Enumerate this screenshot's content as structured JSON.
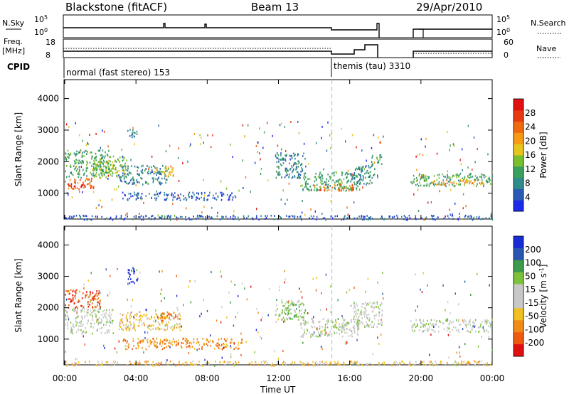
{
  "chart_data": {
    "type": "heatmap",
    "title": "Blackstone (fitACF)",
    "beam": "Beam 13",
    "date": "29/Apr/2010",
    "x_axis": {
      "label": "Time UT",
      "ticks": [
        "00:00",
        "04:00",
        "08:00",
        "12:00",
        "16:00",
        "20:00",
        "00:00"
      ],
      "range_hours": [
        0,
        24
      ]
    },
    "top_panels": {
      "nsky": {
        "left_label": "N.Sky",
        "left_ticks": [
          "10^5",
          "10^0"
        ],
        "right_label": "N.Search",
        "right_ticks": [
          "10^5",
          "10^0"
        ]
      },
      "freq": {
        "left_label_1": "Freq.",
        "left_label_2": "[MHz]",
        "left_ticks": [
          "18",
          "8"
        ],
        "right_label": "Nave",
        "right_ticks": [
          "60",
          "0"
        ]
      },
      "cpid": {
        "label": "CPID",
        "modes": [
          {
            "name": "normal (fast stereo) 153",
            "start_h": 0,
            "end_h": 15
          },
          {
            "name": "themis (tau) 3310",
            "start_h": 15,
            "end_h": 24
          }
        ]
      }
    },
    "panels": [
      {
        "name": "Power",
        "ylabel": "Slant Range [km]",
        "y_ticks": [
          1000,
          2000,
          3000,
          4000
        ],
        "ylim": [
          180,
          4600
        ],
        "colorbar": {
          "label": "Power [dB]",
          "ticks": [
            "4",
            "8",
            "12",
            "16",
            "20",
            "24",
            "28"
          ],
          "colors": [
            "#1c2bea",
            "#2b5ab4",
            "#2f8a8a",
            "#3a9f5a",
            "#7abf2e",
            "#e8c51d",
            "#f59a14",
            "#f06a10",
            "#e83a10",
            "#e01010"
          ]
        },
        "regions": [
          {
            "t": [
              0.0,
              2.5
            ],
            "r": [
              1500,
              2400
            ],
            "level": 3
          },
          {
            "t": [
              0.0,
              1.6
            ],
            "r": [
              1150,
              1500
            ],
            "level": 7
          },
          {
            "t": [
              0.1,
              1.2
            ],
            "r": [
              1200,
              1320
            ],
            "level": 9
          },
          {
            "t": [
              1.5,
              3.5
            ],
            "r": [
              1500,
              2200
            ],
            "level": 4
          },
          {
            "t": [
              3.0,
              5.8
            ],
            "r": [
              1300,
              1900
            ],
            "level": 2
          },
          {
            "t": [
              3.2,
              9.6
            ],
            "r": [
              800,
              1050
            ],
            "level": 1
          },
          {
            "t": [
              5.0,
              6.2
            ],
            "r": [
              1550,
              1850
            ],
            "level": 5
          },
          {
            "t": [
              11.8,
              13.5
            ],
            "r": [
              1500,
              2300
            ],
            "level": 2
          },
          {
            "t": [
              13.2,
              16.5
            ],
            "r": [
              1100,
              1700
            ],
            "level": 3
          },
          {
            "t": [
              14.0,
              16.2
            ],
            "r": [
              1100,
              1320
            ],
            "level": 7
          },
          {
            "t": [
              16.0,
              17.4
            ],
            "r": [
              1300,
              1900
            ],
            "level": 2
          },
          {
            "t": [
              17.2,
              17.8
            ],
            "r": [
              1900,
              2250
            ],
            "level": 3
          },
          {
            "t": [
              19.4,
              24.0
            ],
            "r": [
              1250,
              1650
            ],
            "level": 3
          },
          {
            "t": [
              20.5,
              23.5
            ],
            "r": [
              1280,
              1450
            ],
            "level": 6
          },
          {
            "t": [
              3.5,
              4.1
            ],
            "r": [
              2800,
              3100
            ],
            "level": 2
          },
          {
            "t": [
              0.0,
              24.0
            ],
            "r": [
              180,
              320
            ],
            "level": 1
          }
        ]
      },
      {
        "name": "Velocity",
        "ylabel": "Slant Range [km]",
        "y_ticks": [
          1000,
          2000,
          3000,
          4000
        ],
        "ylim": [
          180,
          4600
        ],
        "colorbar": {
          "label": "Velocity [m s^-1]",
          "ticks": [
            "200",
            "100",
            "50",
            "15",
            "-15",
            "-50",
            "-100",
            "-200"
          ],
          "colors": [
            "#1a2cd6",
            "#2a55b0",
            "#3b9b4a",
            "#7cc23a",
            "#c8c8c8",
            "#c8c8c8",
            "#f0c020",
            "#f08a18",
            "#f05a10",
            "#e01010"
          ]
        },
        "regions": [
          {
            "t": [
              0.0,
              2.7
            ],
            "r": [
              1200,
              2000
            ],
            "level": 4
          },
          {
            "t": [
              0.0,
              2.0
            ],
            "r": [
              2000,
              2600
            ],
            "level": 8
          },
          {
            "t": [
              3.0,
              6.5
            ],
            "r": [
              1300,
              1900
            ],
            "level": 6
          },
          {
            "t": [
              5.0,
              6.3
            ],
            "r": [
              1600,
              1850
            ],
            "level": 8
          },
          {
            "t": [
              3.2,
              10.0
            ],
            "r": [
              700,
              1050
            ],
            "level": 7
          },
          {
            "t": [
              3.5,
              4.1
            ],
            "r": [
              2800,
              3300
            ],
            "level": 0
          },
          {
            "t": [
              11.8,
              13.5
            ],
            "r": [
              1500,
              2300
            ],
            "level": 3
          },
          {
            "t": [
              13.2,
              16.5
            ],
            "r": [
              1100,
              1700
            ],
            "level": 4
          },
          {
            "t": [
              16.0,
              17.8
            ],
            "r": [
              1400,
              2200
            ],
            "level": 4
          },
          {
            "t": [
              19.4,
              24.0
            ],
            "r": [
              1250,
              1650
            ],
            "level": 4
          },
          {
            "t": [
              0.0,
              24.0
            ],
            "r": [
              180,
              320
            ],
            "level": 6
          }
        ]
      }
    ],
    "grid": false
  }
}
